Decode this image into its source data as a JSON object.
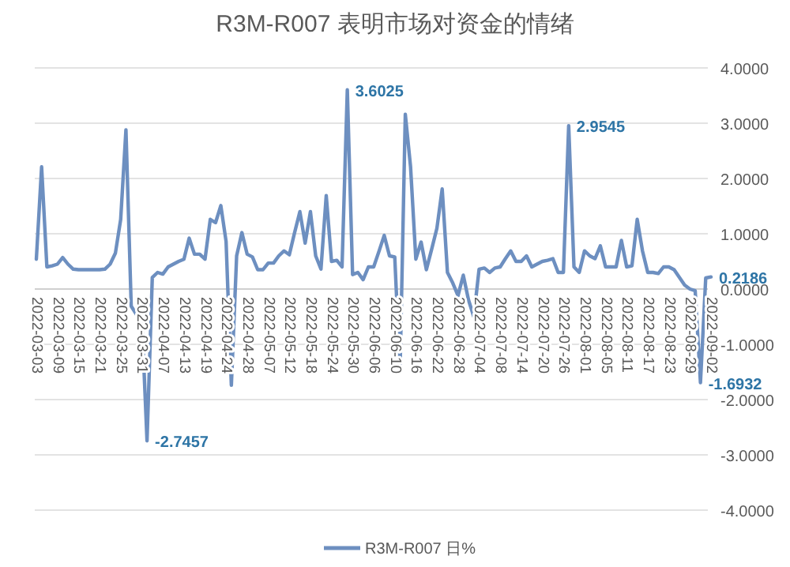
{
  "chart_data": {
    "type": "line",
    "title": "R3M-R007 表明市场对资金的情绪",
    "categories": [
      "2022-03-03",
      null,
      null,
      null,
      "2022-03-09",
      null,
      null,
      null,
      "2022-03-15",
      null,
      null,
      null,
      "2022-03-21",
      null,
      null,
      null,
      "2022-03-25",
      null,
      null,
      null,
      "2022-03-31",
      null,
      null,
      null,
      "2022-04-07",
      null,
      null,
      null,
      "2022-04-13",
      null,
      null,
      null,
      "2022-04-19",
      null,
      null,
      null,
      "2022-04-24",
      null,
      null,
      null,
      "2022-04-28",
      null,
      null,
      null,
      "2022-05-07",
      null,
      null,
      null,
      "2022-05-12",
      null,
      null,
      null,
      "2022-05-18",
      null,
      null,
      null,
      "2022-05-24",
      null,
      null,
      null,
      "2022-05-30",
      null,
      null,
      null,
      "2022-06-06",
      null,
      null,
      null,
      "2022-06-10",
      null,
      null,
      null,
      "2022-06-16",
      null,
      null,
      null,
      "2022-06-22",
      null,
      null,
      null,
      "2022-06-28",
      null,
      null,
      null,
      "2022-07-04",
      null,
      null,
      null,
      "2022-07-08",
      null,
      null,
      null,
      "2022-07-14",
      null,
      null,
      null,
      "2022-07-20",
      null,
      null,
      null,
      "2022-07-26",
      null,
      null,
      null,
      "2022-08-01",
      null,
      null,
      null,
      "2022-08-05",
      null,
      null,
      null,
      "2022-08-11",
      null,
      null,
      null,
      "2022-08-17",
      null,
      null,
      null,
      "2022-08-23",
      null,
      null,
      null,
      "2022-08-29",
      null,
      null,
      null,
      "2022-09-02"
    ],
    "series": [
      {
        "name": "R3M-R007 日%",
        "color": "#6d8fc0",
        "values": [
          0.54,
          2.21,
          0.4,
          0.42,
          0.45,
          0.57,
          0.45,
          0.36,
          0.35,
          0.35,
          0.35,
          0.35,
          0.35,
          0.36,
          0.45,
          0.65,
          1.26,
          2.88,
          -0.31,
          -0.46,
          -0.5,
          -2.7457,
          0.21,
          0.3,
          0.27,
          0.4,
          0.45,
          0.5,
          0.54,
          0.92,
          0.63,
          0.63,
          0.54,
          1.26,
          1.2,
          1.51,
          0.86,
          -1.74,
          0.6,
          1.02,
          0.63,
          0.58,
          0.35,
          0.35,
          0.47,
          0.47,
          0.6,
          0.69,
          0.62,
          1.02,
          1.4,
          0.83,
          1.4,
          0.6,
          0.36,
          1.69,
          0.5,
          0.52,
          0.4,
          3.6025,
          0.26,
          0.3,
          0.17,
          0.4,
          0.4,
          0.68,
          0.97,
          0.6,
          0.58,
          -1.5,
          3.16,
          2.21,
          0.54,
          0.85,
          0.35,
          0.72,
          1.1,
          1.81,
          0.3,
          0.11,
          -0.12,
          0.25,
          -0.2,
          -0.5,
          0.36,
          0.38,
          0.3,
          0.38,
          0.4,
          0.55,
          0.69,
          0.5,
          0.5,
          0.6,
          0.4,
          0.45,
          0.5,
          0.52,
          0.55,
          0.3,
          0.3,
          2.9545,
          0.4,
          0.3,
          0.69,
          0.6,
          0.55,
          0.78,
          0.4,
          0.4,
          0.4,
          0.88,
          0.4,
          0.42,
          1.26,
          0.69,
          0.3,
          0.3,
          0.28,
          0.4,
          0.4,
          0.35,
          0.21,
          0.07,
          0,
          -0.03,
          -1.6932,
          0.2,
          0.2186
        ],
        "value_labels": [
          null,
          null,
          null,
          null,
          null,
          null,
          null,
          null,
          null,
          null,
          null,
          null,
          null,
          null,
          null,
          null,
          null,
          null,
          null,
          null,
          null,
          "-2.7457",
          null,
          null,
          null,
          null,
          null,
          null,
          null,
          null,
          null,
          null,
          null,
          null,
          null,
          null,
          null,
          null,
          null,
          null,
          null,
          null,
          null,
          null,
          null,
          null,
          null,
          null,
          null,
          null,
          null,
          null,
          null,
          null,
          null,
          null,
          null,
          null,
          null,
          "3.6025",
          null,
          null,
          null,
          null,
          null,
          null,
          null,
          null,
          null,
          null,
          null,
          null,
          null,
          null,
          null,
          null,
          null,
          null,
          null,
          null,
          null,
          null,
          null,
          null,
          null,
          null,
          null,
          null,
          null,
          null,
          null,
          null,
          null,
          null,
          null,
          null,
          null,
          null,
          null,
          null,
          null,
          "2.9545",
          null,
          null,
          null,
          null,
          null,
          null,
          null,
          null,
          null,
          null,
          null,
          null,
          null,
          null,
          null,
          null,
          null,
          null,
          null,
          null,
          null,
          null,
          null,
          null,
          "-1.6932",
          null,
          "0.2186"
        ]
      }
    ],
    "ylim": [
      -4,
      4
    ],
    "yticks": [
      {
        "value": 4,
        "label": "4.0000"
      },
      {
        "value": 3,
        "label": "3.0000"
      },
      {
        "value": 2,
        "label": "2.0000"
      },
      {
        "value": 1,
        "label": "1.0000"
      },
      {
        "value": 0,
        "label": "0.0000"
      },
      {
        "value": -1,
        "label": "-1.0000"
      },
      {
        "value": -2,
        "label": "-2.0000"
      },
      {
        "value": -3,
        "label": "-3.0000"
      },
      {
        "value": -4,
        "label": "-4.0000"
      }
    ],
    "grid": "y",
    "legend": "bottom"
  }
}
